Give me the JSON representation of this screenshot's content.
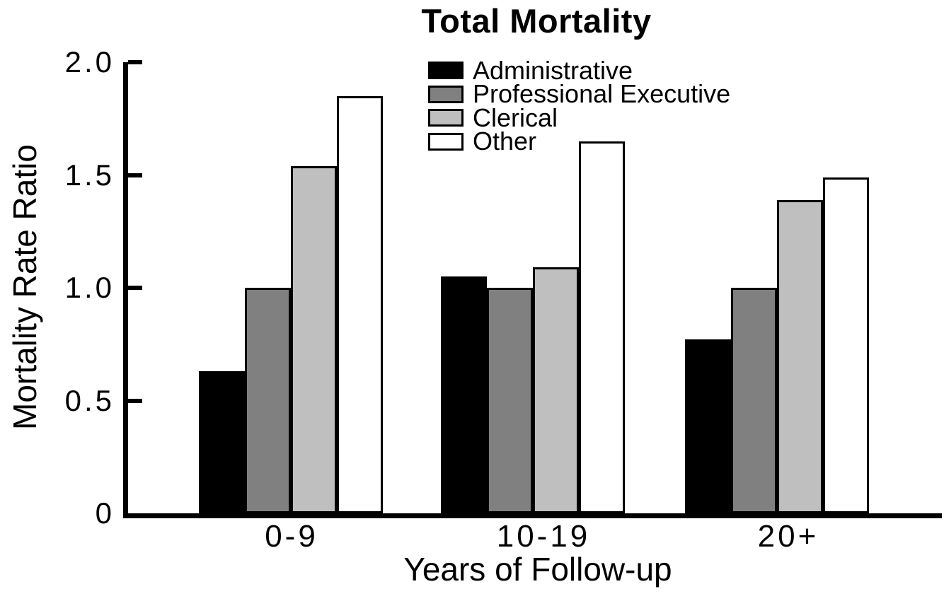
{
  "chart_data": {
    "type": "bar",
    "title": "Total Mortality",
    "xlabel": "Years of Follow-up",
    "ylabel": "Mortality Rate Ratio",
    "categories": [
      "0-9",
      "10-19",
      "20+"
    ],
    "series": [
      {
        "name": "Administrative",
        "color": "#000000",
        "values": [
          0.63,
          1.05,
          0.77
        ]
      },
      {
        "name": "Professional Executive",
        "color": "#808080",
        "values": [
          1.0,
          1.0,
          1.0
        ]
      },
      {
        "name": "Clerical",
        "color": "#bfbfbf",
        "values": [
          1.54,
          1.09,
          1.39
        ]
      },
      {
        "name": "Other",
        "color": "#ffffff",
        "values": [
          1.85,
          1.65,
          1.49
        ]
      }
    ],
    "ylim": [
      0,
      2.0
    ],
    "yticks": [
      0,
      0.5,
      1.0,
      1.5,
      2.0
    ],
    "ytick_labels": [
      "0",
      "0.5",
      "1.0",
      "1.5",
      "2.0"
    ],
    "grid": false,
    "legend_position": "top-center",
    "axis_color": "#000000",
    "background_color": "#ffffff"
  }
}
